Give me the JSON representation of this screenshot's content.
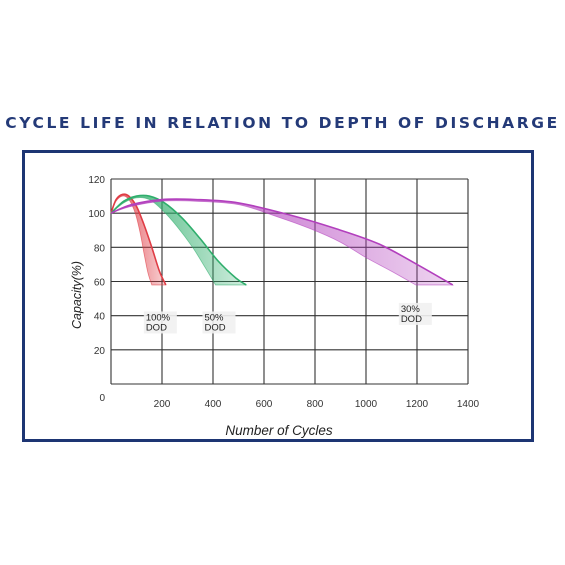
{
  "page": {
    "title": "CYCLE LIFE IN RELATION TO DEPTH OF DISCHARGE"
  },
  "colors": {
    "title": "#243a78",
    "frame": "#1d3573",
    "grid": "#333333",
    "dod100": "#e03c45",
    "dod50": "#2fae6c",
    "dod30": "#b23fbd"
  },
  "chart_data": {
    "type": "area",
    "title": "CYCLE LIFE IN RELATION TO DEPTH OF DISCHARGE",
    "xlabel": "Number of Cycles",
    "ylabel": "Capacity(%)",
    "xlim": [
      0,
      1400
    ],
    "ylim": [
      0,
      120
    ],
    "xticks": [
      "200",
      "400",
      "600",
      "800",
      "1000",
      "1200",
      "1400"
    ],
    "yticks": [
      "0",
      "20",
      "40",
      "60",
      "80",
      "100",
      "120"
    ],
    "grid": true,
    "legend": "none",
    "series": [
      {
        "name": "100% DOD",
        "color": "#e03c45",
        "label_lines": [
          "100%",
          "DOD"
        ],
        "upper": [
          [
            0,
            100
          ],
          [
            20,
            108
          ],
          [
            45,
            111
          ],
          [
            70,
            110
          ],
          [
            100,
            104
          ],
          [
            130,
            93
          ],
          [
            160,
            80
          ],
          [
            190,
            66
          ],
          [
            215,
            58
          ]
        ],
        "lower": [
          [
            0,
            100
          ],
          [
            20,
            107
          ],
          [
            45,
            110
          ],
          [
            70,
            108
          ],
          [
            95,
            100
          ],
          [
            115,
            88
          ],
          [
            130,
            76
          ],
          [
            145,
            65
          ],
          [
            160,
            58
          ]
        ]
      },
      {
        "name": "50% DOD",
        "color": "#2fae6c",
        "label_lines": [
          "50%",
          "DOD"
        ],
        "upper": [
          [
            0,
            100
          ],
          [
            50,
            107
          ],
          [
            100,
            110
          ],
          [
            150,
            110
          ],
          [
            210,
            106
          ],
          [
            280,
            97
          ],
          [
            350,
            85
          ],
          [
            420,
            72
          ],
          [
            490,
            62
          ],
          [
            530,
            58
          ]
        ],
        "lower": [
          [
            0,
            100
          ],
          [
            50,
            106
          ],
          [
            100,
            109
          ],
          [
            150,
            108
          ],
          [
            200,
            102
          ],
          [
            260,
            92
          ],
          [
            320,
            80
          ],
          [
            370,
            68
          ],
          [
            410,
            58
          ]
        ]
      },
      {
        "name": "30% DOD",
        "color": "#b23fbd",
        "label_lines": [
          "30%",
          "DOD"
        ],
        "upper": [
          [
            0,
            100
          ],
          [
            80,
            105
          ],
          [
            200,
            108
          ],
          [
            330,
            108
          ],
          [
            500,
            106
          ],
          [
            700,
            99
          ],
          [
            880,
            91
          ],
          [
            1050,
            82
          ],
          [
            1200,
            70
          ],
          [
            1340,
            58
          ]
        ],
        "lower": [
          [
            0,
            100
          ],
          [
            80,
            104
          ],
          [
            200,
            107
          ],
          [
            330,
            107
          ],
          [
            500,
            105
          ],
          [
            650,
            98
          ],
          [
            780,
            91
          ],
          [
            900,
            83
          ],
          [
            1000,
            74
          ],
          [
            1100,
            66
          ],
          [
            1195,
            58
          ]
        ]
      }
    ],
    "annotations": [
      {
        "series": 0,
        "x": 215,
        "y": 29
      },
      {
        "series": 1,
        "x": 445,
        "y": 29
      },
      {
        "series": 2,
        "x": 1215,
        "y": 34
      }
    ]
  }
}
